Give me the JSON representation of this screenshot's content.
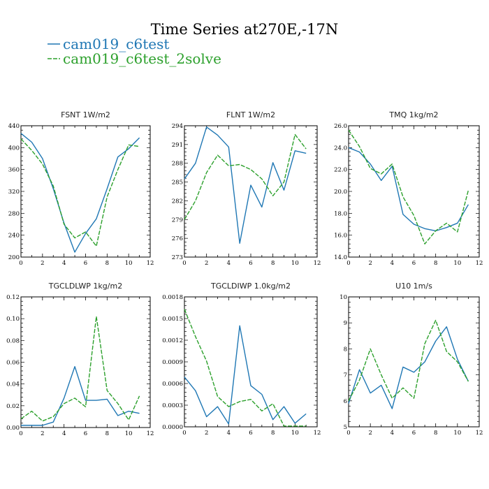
{
  "title": "Time Series at270E,-17N",
  "colors": {
    "case1": "#1f77b4",
    "case2": "#2ca02c"
  },
  "legend": [
    {
      "label": "cam019_c6test",
      "color": "#1f77b4",
      "dashed": false
    },
    {
      "label": "cam019_c6test_2solve",
      "color": "#2ca02c",
      "dashed": true
    }
  ],
  "chart_data": [
    {
      "type": "line",
      "title": "FSNT   1W/m2",
      "x": [
        0,
        1,
        2,
        3,
        4,
        5,
        6,
        7,
        8,
        9,
        10,
        11
      ],
      "xlim": [
        0,
        12
      ],
      "xticks": [
        "0",
        "2",
        "4",
        "6",
        "8",
        "10",
        "12"
      ],
      "ylim": [
        200,
        440
      ],
      "yticks": [
        "200",
        "240",
        "280",
        "320",
        "360",
        "400",
        "440"
      ],
      "series": [
        {
          "name": "cam019_c6test",
          "values": [
            426,
            410,
            380,
            325,
            262,
            209,
            243,
            270,
            325,
            383,
            398,
            418
          ]
        },
        {
          "name": "cam019_c6test_2solve",
          "values": [
            416,
            395,
            370,
            330,
            260,
            235,
            246,
            220,
            310,
            360,
            405,
            402
          ]
        }
      ]
    },
    {
      "type": "line",
      "title": "FLNT   1W/m2",
      "x": [
        0,
        1,
        2,
        3,
        4,
        5,
        6,
        7,
        8,
        9,
        10,
        11
      ],
      "xlim": [
        0,
        12
      ],
      "xticks": [
        "0",
        "2",
        "4",
        "6",
        "8",
        "10",
        "12"
      ],
      "ylim": [
        273,
        294
      ],
      "yticks": [
        "273",
        "276",
        "279",
        "282",
        "285",
        "288",
        "291",
        "294"
      ],
      "series": [
        {
          "name": "cam019_c6test",
          "values": [
            285.5,
            288,
            293.8,
            292.5,
            290.6,
            275.2,
            284.5,
            281,
            288.1,
            283.7,
            290,
            289.6
          ]
        },
        {
          "name": "cam019_c6test_2solve",
          "values": [
            279,
            282,
            286.5,
            289.3,
            287.6,
            287.8,
            287,
            285.5,
            282.8,
            285,
            292.6,
            290.3
          ]
        }
      ]
    },
    {
      "type": "line",
      "title": "TMQ   1kg/m2",
      "x": [
        0,
        1,
        2,
        3,
        4,
        5,
        6,
        7,
        8,
        9,
        10,
        11
      ],
      "xlim": [
        0,
        12
      ],
      "xticks": [
        "0",
        "2",
        "4",
        "6",
        "8",
        "10",
        "12"
      ],
      "ylim": [
        14,
        26
      ],
      "yticks": [
        "14.0",
        "16.0",
        "18.0",
        "20.0",
        "22.0",
        "24.0",
        "26.0"
      ],
      "series": [
        {
          "name": "cam019_c6test",
          "values": [
            24.0,
            23.6,
            22.5,
            21.0,
            22.3,
            17.9,
            17.0,
            16.6,
            16.4,
            16.7,
            17.1,
            18.8
          ]
        },
        {
          "name": "cam019_c6test_2solve",
          "values": [
            25.6,
            24.1,
            22.1,
            21.6,
            22.5,
            19.5,
            17.8,
            15.2,
            16.4,
            17.1,
            16.3,
            20.1
          ]
        }
      ]
    },
    {
      "type": "line",
      "title": "TGCLDLWP   1kg/m2",
      "x": [
        0,
        1,
        2,
        3,
        4,
        5,
        6,
        7,
        8,
        9,
        10,
        11
      ],
      "xlim": [
        0,
        12
      ],
      "xticks": [
        "0",
        "2",
        "4",
        "6",
        "8",
        "10",
        "12"
      ],
      "ylim": [
        0,
        0.12
      ],
      "yticks": [
        "0.00",
        "0.02",
        "0.04",
        "0.06",
        "0.08",
        "0.10",
        "0.12"
      ],
      "series": [
        {
          "name": "cam019_c6test",
          "values": [
            0.002,
            0.002,
            0.002,
            0.005,
            0.027,
            0.056,
            0.025,
            0.025,
            0.026,
            0.011,
            0.015,
            0.013
          ]
        },
        {
          "name": "cam019_c6test_2solve",
          "values": [
            0.008,
            0.015,
            0.006,
            0.01,
            0.022,
            0.027,
            0.019,
            0.102,
            0.034,
            0.022,
            0.007,
            0.029
          ]
        }
      ]
    },
    {
      "type": "line",
      "title": "TGCLDIWP   1.0kg/m2",
      "x": [
        0,
        1,
        2,
        3,
        4,
        5,
        6,
        7,
        8,
        9,
        10,
        11
      ],
      "xlim": [
        0,
        12
      ],
      "xticks": [
        "0",
        "2",
        "4",
        "6",
        "8",
        "10",
        "12"
      ],
      "ylim": [
        0,
        0.0018
      ],
      "yticks": [
        "0.0000",
        "0.0003",
        "0.0006",
        "0.0009",
        "0.0012",
        "0.0015",
        "0.0018"
      ],
      "series": [
        {
          "name": "cam019_c6test",
          "values": [
            0.00069,
            0.0005,
            0.00014,
            0.00028,
            4e-05,
            0.0014,
            0.00057,
            0.00045,
            0.0001,
            0.00028,
            5e-05,
            0.00018
          ]
        },
        {
          "name": "cam019_c6test_2solve",
          "values": [
            0.00163,
            0.00125,
            0.00091,
            0.00042,
            0.00028,
            0.00035,
            0.00038,
            0.00022,
            0.00032,
            1e-05,
            1e-05,
            1e-05
          ]
        }
      ]
    },
    {
      "type": "line",
      "title": "U10   1m/s",
      "x": [
        0,
        1,
        2,
        3,
        4,
        5,
        6,
        7,
        8,
        9,
        10,
        11
      ],
      "xlim": [
        0,
        12
      ],
      "xticks": [
        "0",
        "2",
        "4",
        "6",
        "8",
        "10",
        "12"
      ],
      "ylim": [
        5,
        10
      ],
      "yticks": [
        "5",
        "6",
        "7",
        "8",
        "9",
        "10"
      ],
      "series": [
        {
          "name": "cam019_c6test",
          "values": [
            5.9,
            7.2,
            6.3,
            6.6,
            5.7,
            7.3,
            7.1,
            7.5,
            8.3,
            8.85,
            7.6,
            6.75
          ]
        },
        {
          "name": "cam019_c6test_2solve",
          "values": [
            6.0,
            6.8,
            8.0,
            7.0,
            6.1,
            6.5,
            6.1,
            8.2,
            9.1,
            7.9,
            7.5,
            6.75
          ]
        }
      ]
    }
  ]
}
